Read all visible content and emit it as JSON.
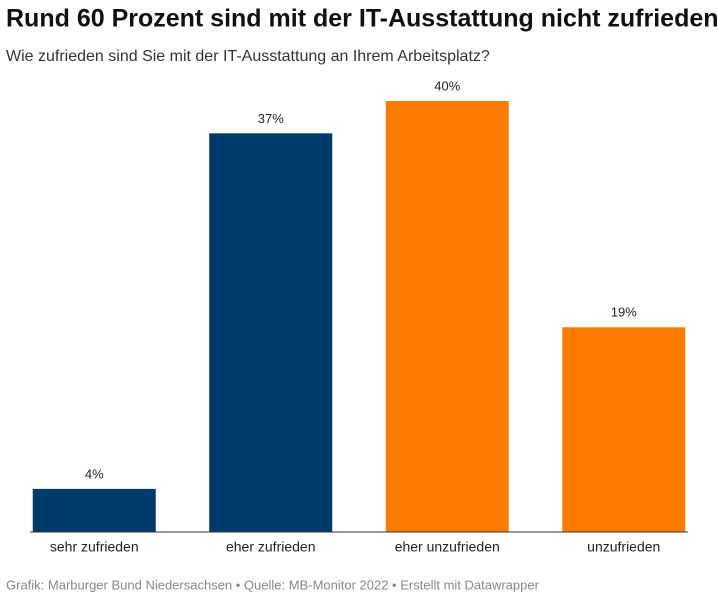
{
  "chart_data": {
    "type": "bar",
    "title": "Rund 60 Prozent sind mit der IT-Ausstattung nicht zufrieden.",
    "subtitle": "Wie zufrieden sind Sie mit der IT-Ausstattung an Ihrem Arbeitsplatz?",
    "categories": [
      "sehr zufrieden",
      "eher zufrieden",
      "eher unzufrieden",
      "unzufrieden"
    ],
    "values": [
      4,
      37,
      40,
      19
    ],
    "value_labels": [
      "4%",
      "37%",
      "40%",
      "19%"
    ],
    "colors": [
      "#003a6b",
      "#003a6b",
      "#ff7b00",
      "#ff7b00"
    ],
    "source": "Grafik: Marburger Bund Niedersachsen • Quelle: MB-Monitor 2022 • Erstellt mit Datawrapper"
  }
}
